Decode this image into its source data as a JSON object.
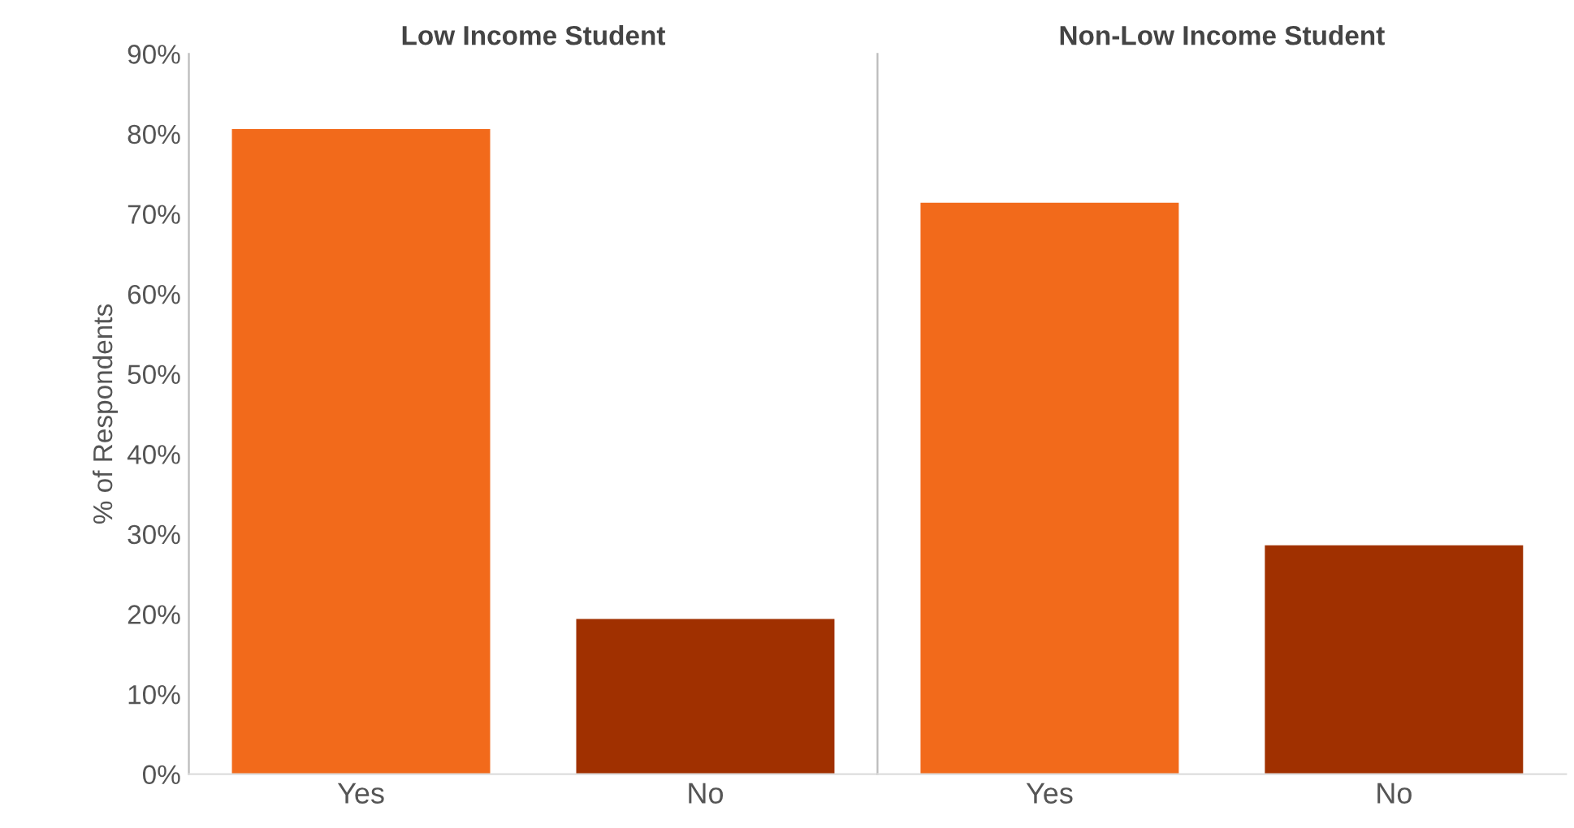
{
  "chart_data": [
    {
      "type": "bar",
      "title": "Low Income Student",
      "ylabel": "% of Respondents",
      "categories": [
        "Yes",
        "No"
      ],
      "values": [
        80.6,
        19.4
      ],
      "colors": [
        "#f26a1b",
        "#a03000"
      ],
      "ylim": [
        0,
        90
      ],
      "yticks": [
        {
          "value": 0,
          "label": "0%"
        },
        {
          "value": 10,
          "label": "10%"
        },
        {
          "value": 20,
          "label": "20%"
        },
        {
          "value": 30,
          "label": "30%"
        },
        {
          "value": 40,
          "label": "40%"
        },
        {
          "value": 50,
          "label": "50%"
        },
        {
          "value": 60,
          "label": "60%"
        },
        {
          "value": 70,
          "label": "70%"
        },
        {
          "value": 80,
          "label": "80%"
        },
        {
          "value": 90,
          "label": "90%"
        }
      ],
      "grid": false
    },
    {
      "type": "bar",
      "title": "Non-Low Income Student",
      "categories": [
        "Yes",
        "No"
      ],
      "values": [
        71.4,
        28.6
      ],
      "colors": [
        "#f26a1b",
        "#a03000"
      ],
      "ylim": [
        0,
        90
      ],
      "grid": false,
      "tick_labels": "x"
    }
  ]
}
